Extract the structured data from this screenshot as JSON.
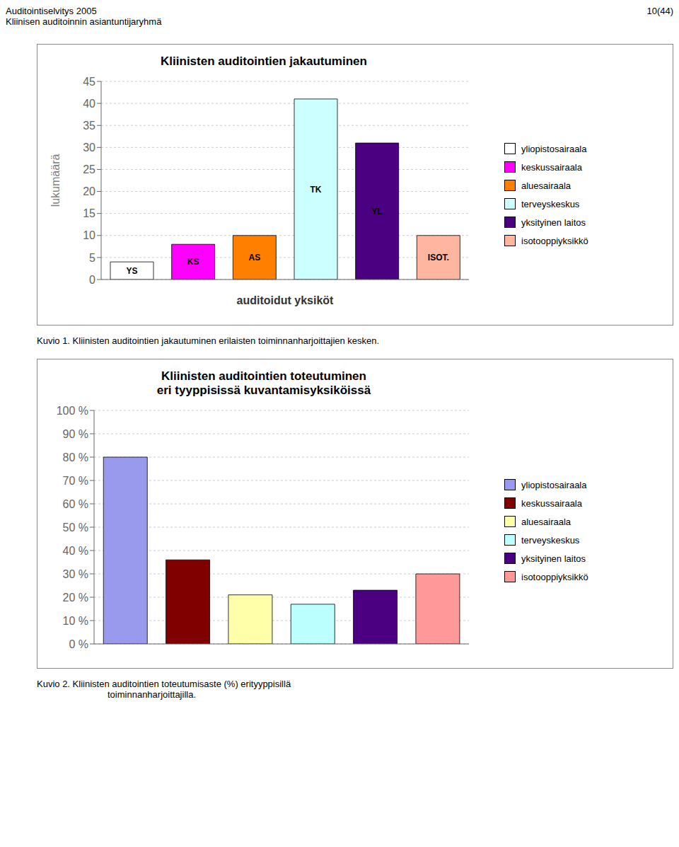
{
  "annotations": [
    "Auditointiselvitys 2005",
    "Kliinisen auditoinnin asiantuntijaryhmä",
    "10(44)"
  ],
  "chart_data": [
    {
      "type": "bar",
      "title": "Kliinisten auditointien jakautuminen",
      "categories": [
        "YS",
        "KS",
        "AS",
        "TK",
        "YL",
        "ISOT."
      ],
      "values": [
        4,
        8,
        10,
        41,
        31,
        10
      ],
      "colors": [
        "#FFFFFF",
        "#FF00FF",
        "#FF8000",
        "#CCFFFF",
        "#4B0082",
        "#FFB6A0"
      ],
      "ylabel": "lukumäärä",
      "xlabel": "auditoidut yksiköt",
      "ylim": [
        0,
        45
      ],
      "yticks": [
        0,
        5,
        10,
        15,
        20,
        25,
        30,
        35,
        40,
        45
      ],
      "grid": true,
      "tick_labels": "y",
      "legend": "right",
      "legend_labels": [
        "yliopistosairaala",
        "keskussairaala",
        "aluesairaala",
        "terveyskeskus",
        "yksityinen laitos",
        "isotooppiyksikkö"
      ],
      "annotations": [
        "Kuvio 1. Kliinisten auditointien jakautuminen erilaisten toiminnanharjoittajien kesken."
      ]
    },
    {
      "type": "bar",
      "title": "Kliinisten auditointien toteutuminen\neri tyyppisissä kuvantamisyksiköissä",
      "categories": [
        null,
        null,
        null,
        null,
        null,
        null
      ],
      "values": [
        80,
        36,
        21,
        17,
        23,
        30
      ],
      "colors": [
        "#9999EE",
        "#800000",
        "#FFFFAA",
        "#BBFFFF",
        "#4B0082",
        "#FF9999"
      ],
      "ylim": [
        0,
        100
      ],
      "yticks": [
        {
          "value": 0,
          "label": "0 %"
        },
        {
          "value": 10,
          "label": "10 %"
        },
        {
          "value": 20,
          "label": "20 %"
        },
        {
          "value": 30,
          "label": "30 %"
        },
        {
          "value": 40,
          "label": "40 %"
        },
        {
          "value": 50,
          "label": "50 %"
        },
        {
          "value": 60,
          "label": "60 %"
        },
        {
          "value": 70,
          "label": "70 %"
        },
        {
          "value": 80,
          "label": "80 %"
        },
        {
          "value": 90,
          "label": "90 %"
        },
        {
          "value": 100,
          "label": "100 %"
        }
      ],
      "grid": true,
      "tick_labels": "y",
      "legend": "right",
      "legend_labels": [
        "yliopistosairaala",
        "keskussairaala",
        "aluesairaala",
        "terveyskeskus",
        "yksityinen laitos",
        "isotooppiyksikkö"
      ],
      "annotations": [
        "Kuvio 2. Kliinisten auditointien toteutumisaste (%) erityyppisillä",
        "toiminnanharjoittajilla."
      ]
    }
  ]
}
